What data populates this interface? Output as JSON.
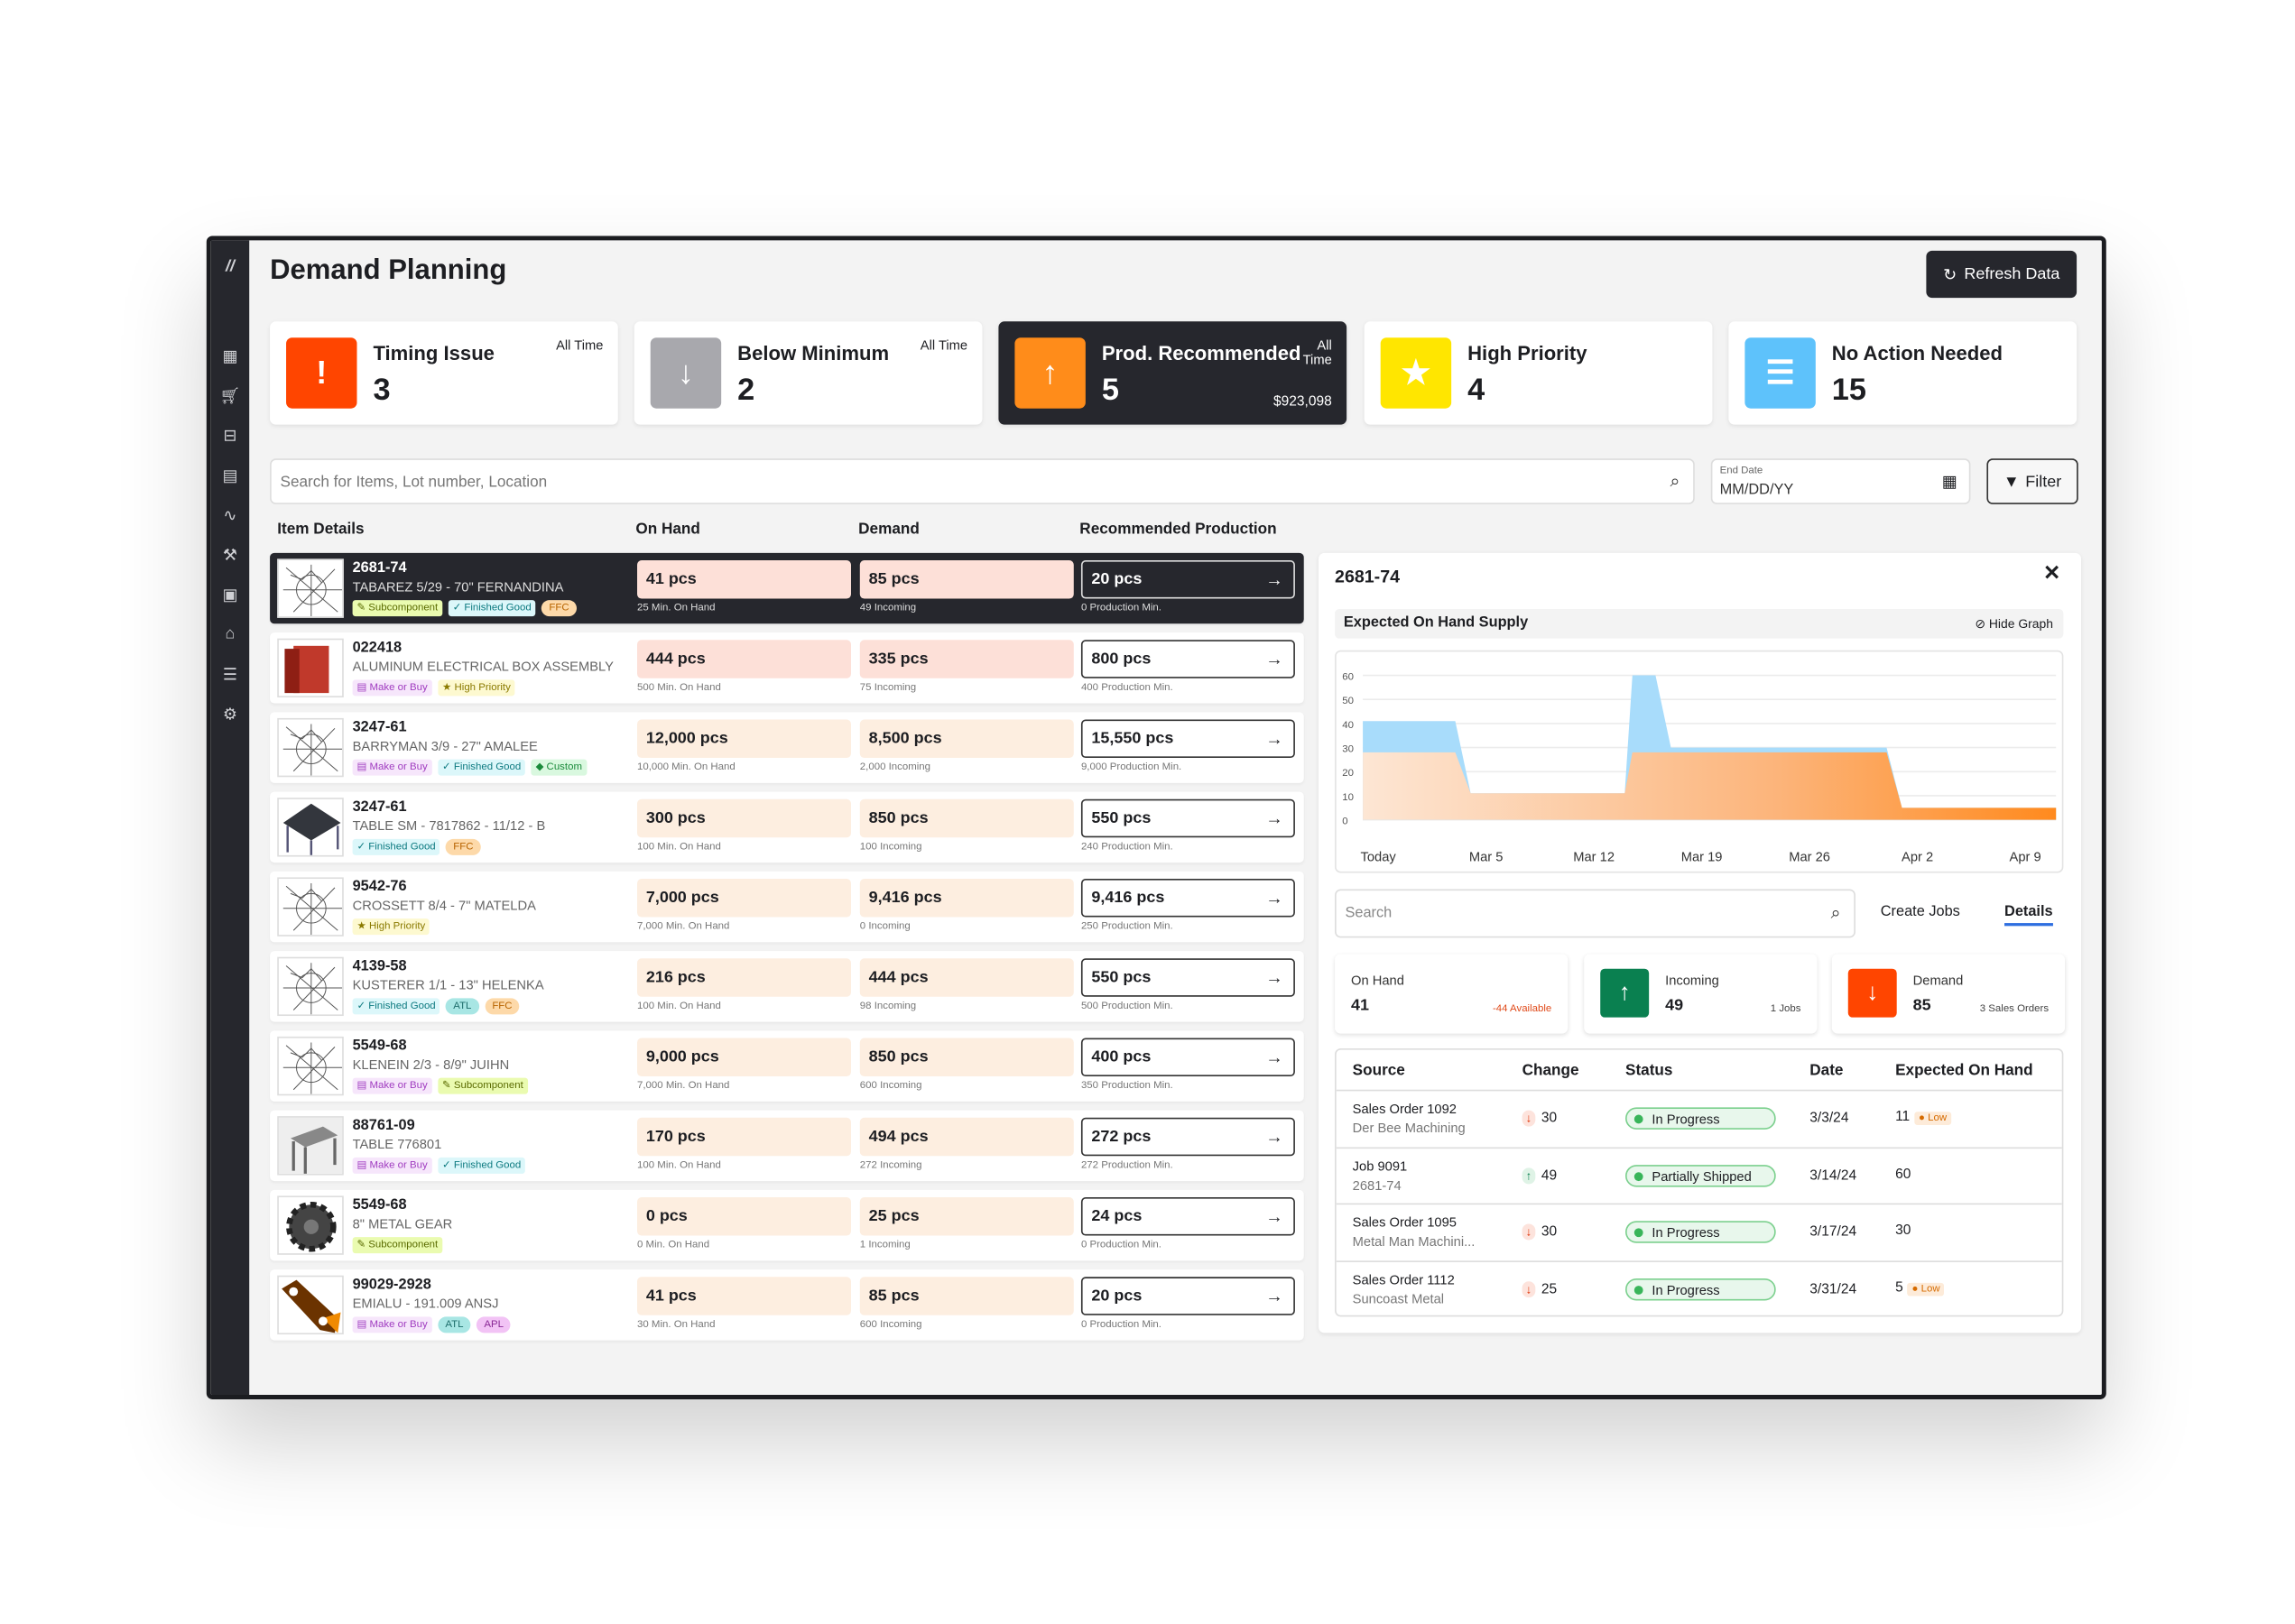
{
  "header": {
    "title": "Demand Planning",
    "refresh_label": "Refresh Data"
  },
  "cards": [
    {
      "label": "Timing Issue",
      "value": "3",
      "period": "All Time",
      "color": "#ff4500",
      "icon": "exclamation-icon"
    },
    {
      "label": "Below Minimum",
      "value": "2",
      "period": "All Time",
      "color": "#a8a8ad",
      "icon": "arrow-down-icon"
    },
    {
      "label": "Prod. Recommended",
      "value": "5",
      "period_line1": "All",
      "period_line2": "Time",
      "amount": "$923,098",
      "color": "#ff8c1a",
      "icon": "arrow-up-icon"
    },
    {
      "label": "High Priority",
      "value": "4",
      "color": "#ffe600",
      "icon": "star-icon"
    },
    {
      "label": "No Action Needed",
      "value": "15",
      "color": "#5ec2fb",
      "icon": "list-icon"
    }
  ],
  "search": {
    "placeholder": "Search for Items, Lot number, Location"
  },
  "end_date": {
    "label": "End Date",
    "placeholder": "MM/DD/YY"
  },
  "filter_label": "Filter",
  "columns": {
    "item": "Item Details",
    "on_hand": "On Hand",
    "demand": "Demand",
    "rec": "Recommended Production"
  },
  "rows": [
    {
      "id": "2681-74",
      "name": "TABAREZ 5/29 - 70\" FERNANDINA",
      "tags": [
        "Subcomponent",
        "Finished Good",
        "FFC"
      ],
      "on_hand": "41 pcs",
      "on_hand_sub": "25 Min. On Hand",
      "demand": "85 pcs",
      "demand_sub": "49 Incoming",
      "rec": "20 pcs",
      "rec_sub": "0 Production Min.",
      "status": "alert",
      "selected": true,
      "thumb": "drawing"
    },
    {
      "id": "022418",
      "name": "ALUMINUM ELECTRICAL BOX ASSEMBLY",
      "tags": [
        "Make or Buy",
        "High Priority"
      ],
      "on_hand": "444 pcs",
      "on_hand_sub": "500 Min. On Hand",
      "demand": "335 pcs",
      "demand_sub": "75 Incoming",
      "rec": "800 pcs",
      "rec_sub": "400 Production Min.",
      "status": "alert",
      "thumb": "red-box"
    },
    {
      "id": "3247-61",
      "name": "BARRYMAN 3/9 - 27\" AMALEE",
      "tags": [
        "Make or Buy",
        "Finished Good",
        "Custom"
      ],
      "on_hand": "12,000 pcs",
      "on_hand_sub": "10,000 Min. On Hand",
      "demand": "8,500 pcs",
      "demand_sub": "2,000 Incoming",
      "rec": "15,550 pcs",
      "rec_sub": "9,000 Production Min.",
      "status": "normal",
      "thumb": "drawing"
    },
    {
      "id": "3247-61",
      "name": "TABLE SM - 7817862 - 11/12 - B",
      "tags": [
        "Finished Good",
        "FFC"
      ],
      "on_hand": "300 pcs",
      "on_hand_sub": "100 Min. On Hand",
      "demand": "850 pcs",
      "demand_sub": "100 Incoming",
      "rec": "550 pcs",
      "rec_sub": "240 Production Min.",
      "status": "normal",
      "thumb": "table-dark"
    },
    {
      "id": "9542-76",
      "name": "CROSSETT 8/4 - 7\" MATELDA",
      "tags": [
        "High Priority"
      ],
      "on_hand": "7,000 pcs",
      "on_hand_sub": "7,000 Min. On Hand",
      "demand": "9,416 pcs",
      "demand_sub": "0 Incoming",
      "rec": "9,416 pcs",
      "rec_sub": "250 Production Min.",
      "status": "normal",
      "thumb": "drawing"
    },
    {
      "id": "4139-58",
      "name": "KUSTERER 1/1 - 13\" HELENKA",
      "tags": [
        "Finished Good",
        "ATL",
        "FFC"
      ],
      "on_hand": "216 pcs",
      "on_hand_sub": "100 Min. On Hand",
      "demand": "444 pcs",
      "demand_sub": "98 Incoming",
      "rec": "550 pcs",
      "rec_sub": "500 Production Min.",
      "status": "normal",
      "thumb": "drawing"
    },
    {
      "id": "5549-68",
      "name": "KLENEIN 2/3 - 8/9\" JUIHN",
      "tags": [
        "Make or Buy",
        "Subcomponent"
      ],
      "on_hand": "9,000 pcs",
      "on_hand_sub": "7,000 Min. On Hand",
      "demand": "850 pcs",
      "demand_sub": "600 Incoming",
      "rec": "400 pcs",
      "rec_sub": "350 Production Min.",
      "status": "normal",
      "thumb": "drawing"
    },
    {
      "id": "88761-09",
      "name": "TABLE 776801",
      "tags": [
        "Make or Buy",
        "Finished Good"
      ],
      "on_hand": "170 pcs",
      "on_hand_sub": "100 Min. On Hand",
      "demand": "494 pcs",
      "demand_sub": "272 Incoming",
      "rec": "272 pcs",
      "rec_sub": "272 Production Min.",
      "status": "normal",
      "thumb": "table-gray"
    },
    {
      "id": "5549-68",
      "name": "8\" METAL GEAR",
      "tags": [
        "Subcomponent"
      ],
      "on_hand": "0 pcs",
      "on_hand_sub": "0 Min. On Hand",
      "demand": "25 pcs",
      "demand_sub": "1 Incoming",
      "rec": "24 pcs",
      "rec_sub": "0 Production Min.",
      "status": "normal",
      "thumb": "gear"
    },
    {
      "id": "99029-2928",
      "name": "EMIALU - 191.009 ANSJ",
      "tags": [
        "Make or Buy",
        "ATL",
        "APL"
      ],
      "on_hand": "41 pcs",
      "on_hand_sub": "30 Min. On Hand",
      "demand": "85 pcs",
      "demand_sub": "600 Incoming",
      "rec": "20 pcs",
      "rec_sub": "0 Production Min.",
      "status": "normal",
      "thumb": "bracket"
    }
  ],
  "tag_styles": {
    "Subcomponent": {
      "bg": "#eafbb0",
      "fg": "#5a6b00",
      "icon": "✎"
    },
    "Finished Good": {
      "bg": "#dcf7fa",
      "fg": "#0d7a80",
      "icon": "✓"
    },
    "FFC": {
      "bg": "#fdd9a9",
      "fg": "#b86400",
      "pill": true
    },
    "Make or Buy": {
      "bg": "#f6e6fb",
      "fg": "#a03cc0",
      "icon": "▤"
    },
    "High Priority": {
      "bg": "#fdf9d0",
      "fg": "#8a7a00",
      "icon": "★"
    },
    "Custom": {
      "bg": "#d9f8df",
      "fg": "#1a8a3a",
      "icon": "◆"
    },
    "ATL": {
      "bg": "#a8e6e4",
      "fg": "#1e6e6c",
      "pill": true
    },
    "APL": {
      "bg": "#f2c3f5",
      "fg": "#8b2a96",
      "pill": true
    }
  },
  "detail": {
    "title": "2681-74",
    "graph_title": "Expected On Hand Supply",
    "hide_graph": "Hide Graph",
    "search_placeholder": "Search",
    "tabs": [
      {
        "label": "Create Jobs",
        "active": false
      },
      {
        "label": "Details",
        "active": true
      }
    ],
    "on_hand": {
      "label": "On Hand",
      "value": "41",
      "note": "-44 Available"
    },
    "incoming": {
      "label": "Incoming",
      "value": "49",
      "note": "1 Jobs",
      "color": "#0a8050"
    },
    "demand": {
      "label": "Demand",
      "value": "85",
      "note": "3 Sales Orders",
      "color": "#ff4500"
    },
    "table_headers": [
      "Source",
      "Change",
      "Status",
      "Date",
      "Expected On Hand"
    ],
    "table_rows": [
      {
        "source": "Sales Order 1092",
        "sub": "Der Bee Machining",
        "dir": "down",
        "change": "30",
        "status": "In Progress",
        "date": "3/3/24",
        "expected": "11",
        "flag": "Low"
      },
      {
        "source": "Job 9091",
        "sub": "2681-74",
        "dir": "up",
        "change": "49",
        "status": "Partially Shipped",
        "date": "3/14/24",
        "expected": "60"
      },
      {
        "source": "Sales Order 1095",
        "sub": "Metal Man Machini...",
        "dir": "down",
        "change": "30",
        "status": "In Progress",
        "date": "3/17/24",
        "expected": "30"
      },
      {
        "source": "Sales Order 1112",
        "sub": "Suncoast Metal",
        "dir": "down",
        "change": "25",
        "status": "In Progress",
        "date": "3/31/24",
        "expected": "5",
        "flag": "Low"
      }
    ]
  },
  "chart_data": {
    "type": "area",
    "title": "Expected On Hand Supply",
    "ylim": [
      0,
      60
    ],
    "y_ticks": [
      0,
      10,
      20,
      30,
      40,
      50,
      60
    ],
    "x_range": [
      "Feb 26",
      "Apr 11"
    ],
    "x_ticks": [
      {
        "label": "Today",
        "date": "Feb 27"
      },
      {
        "label": "Mar 5",
        "date": "Mar 5"
      },
      {
        "label": "Mar 12",
        "date": "Mar 12"
      },
      {
        "label": "Mar 19",
        "date": "Mar 19"
      },
      {
        "label": "Mar 26",
        "date": "Mar 26"
      },
      {
        "label": "Apr 2",
        "date": "Apr 2"
      },
      {
        "label": "Apr 9",
        "date": "Apr 9"
      }
    ],
    "grid": true,
    "series": [
      {
        "color": "#a8dcfb",
        "points": [
          [
            "Feb 26",
            41
          ],
          [
            "Mar 3",
            41
          ],
          [
            "Mar 4",
            11
          ],
          [
            "Mar 14",
            11
          ],
          [
            "Mar 14.5",
            60
          ],
          [
            "Mar 16",
            60
          ],
          [
            "Mar 17",
            30
          ],
          [
            "Mar 31",
            30
          ],
          [
            "Apr 1",
            5
          ],
          [
            "Apr 11",
            5
          ]
        ]
      },
      {
        "color": "#ff8a1e",
        "points": [
          [
            "Feb 26",
            28
          ],
          [
            "Mar 3",
            28
          ],
          [
            "Mar 4",
            11
          ],
          [
            "Mar 14",
            11
          ],
          [
            "Mar 14.5",
            28
          ],
          [
            "Mar 31",
            28
          ],
          [
            "Apr 1",
            5
          ],
          [
            "Apr 11",
            5
          ]
        ]
      }
    ]
  }
}
